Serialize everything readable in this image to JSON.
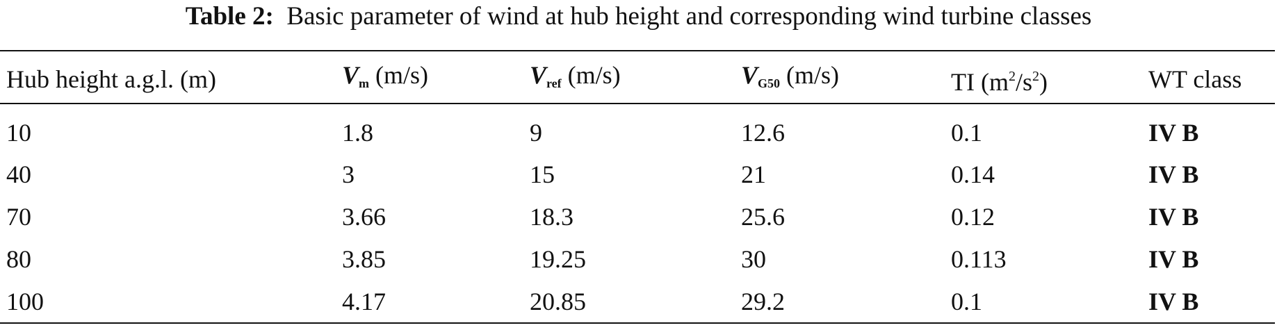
{
  "table": {
    "caption": {
      "label": "Table 2:",
      "text": "Basic parameter of wind at hub height and corresponding wind turbine classes"
    },
    "header": [
      {
        "text": "Hub height a.g.l. (m)"
      },
      {
        "symbol": "V",
        "sub": "m",
        "unit": "(m/s)"
      },
      {
        "symbol": "V",
        "sub": "ref",
        "unit": "(m/s)"
      },
      {
        "symbol": "V",
        "sub": "G50",
        "unit": "(m/s)"
      },
      {
        "text": "TI (m",
        "sup1": "2",
        "mid": "/s",
        "sup2": "2",
        "end": ")"
      },
      {
        "text": "WT class"
      }
    ],
    "rows": [
      [
        10,
        1.8,
        9,
        12.6,
        0.1,
        "IV B"
      ],
      [
        40,
        3,
        15,
        21,
        0.14,
        "IV B"
      ],
      [
        70,
        3.66,
        18.3,
        25.6,
        0.12,
        "IV B"
      ],
      [
        80,
        3.85,
        19.25,
        30,
        0.113,
        "IV B"
      ],
      [
        100,
        4.17,
        20.85,
        29.2,
        0.1,
        "IV B"
      ]
    ]
  }
}
